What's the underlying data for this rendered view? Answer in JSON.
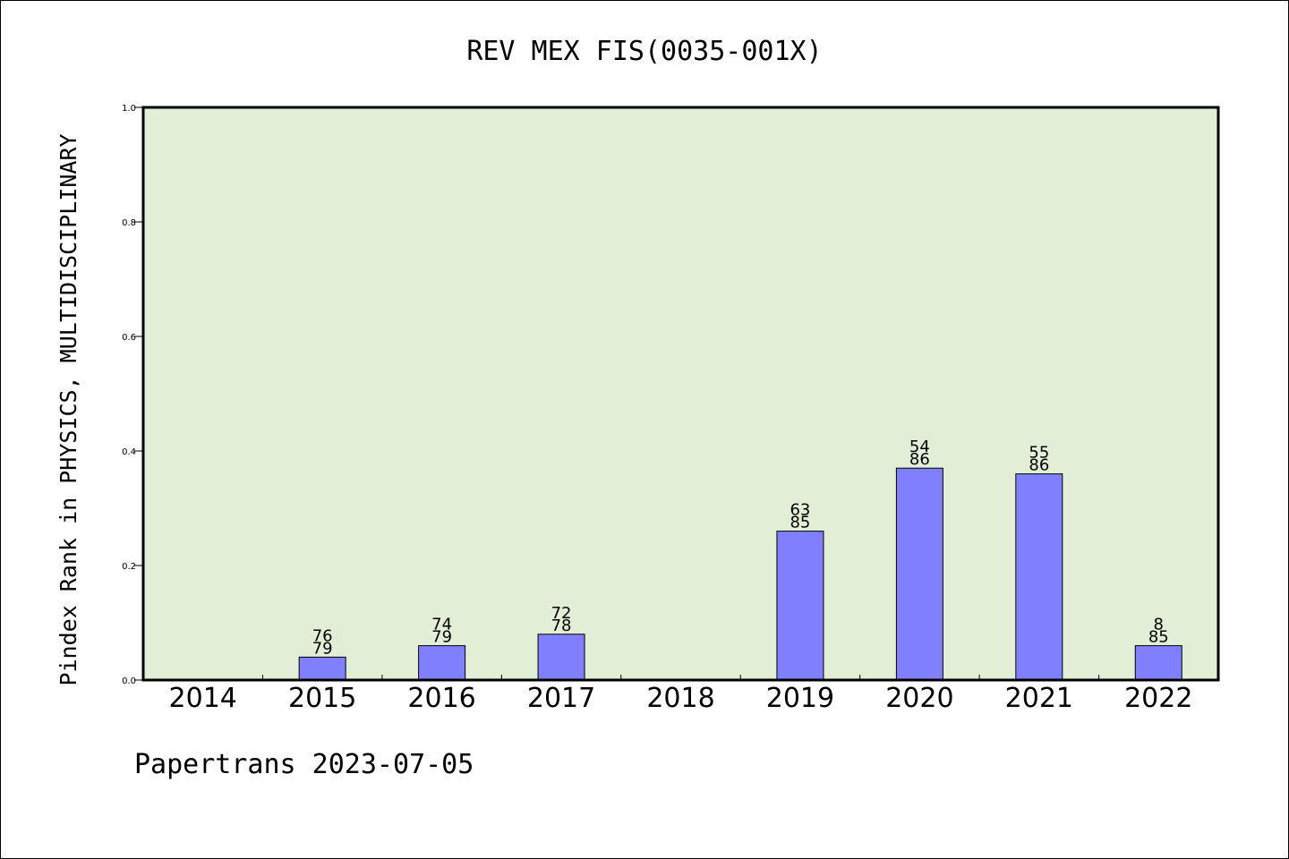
{
  "chart_data": {
    "type": "bar",
    "title": "REV MEX FIS(0035-001X)",
    "xlabel": "",
    "ylabel": "Pindex Rank in PHYSICS, MULTIDISCIPLINARY",
    "categories": [
      "2014",
      "2015",
      "2016",
      "2017",
      "2018",
      "2019",
      "2020",
      "2021",
      "2022"
    ],
    "values": [
      null,
      0.04,
      0.06,
      0.08,
      null,
      0.26,
      0.37,
      0.36,
      0.06
    ],
    "label_top": [
      "",
      "76",
      "74",
      "72",
      "",
      "63",
      "54",
      "55",
      "8"
    ],
    "label_bottom": [
      "",
      "79",
      "79",
      "78",
      "",
      "85",
      "86",
      "86",
      "85"
    ],
    "ylim": [
      0.0,
      1.0
    ],
    "yticks": [
      "0.0",
      "0.2",
      "0.4",
      "0.6",
      "0.8",
      "1.0"
    ],
    "grid": false,
    "legend": "none",
    "colors": {
      "plot_bg": "#e2efd6",
      "bar": "#8080ff",
      "bar_edge": "#000000"
    }
  },
  "footer": "Papertrans 2023-07-05"
}
